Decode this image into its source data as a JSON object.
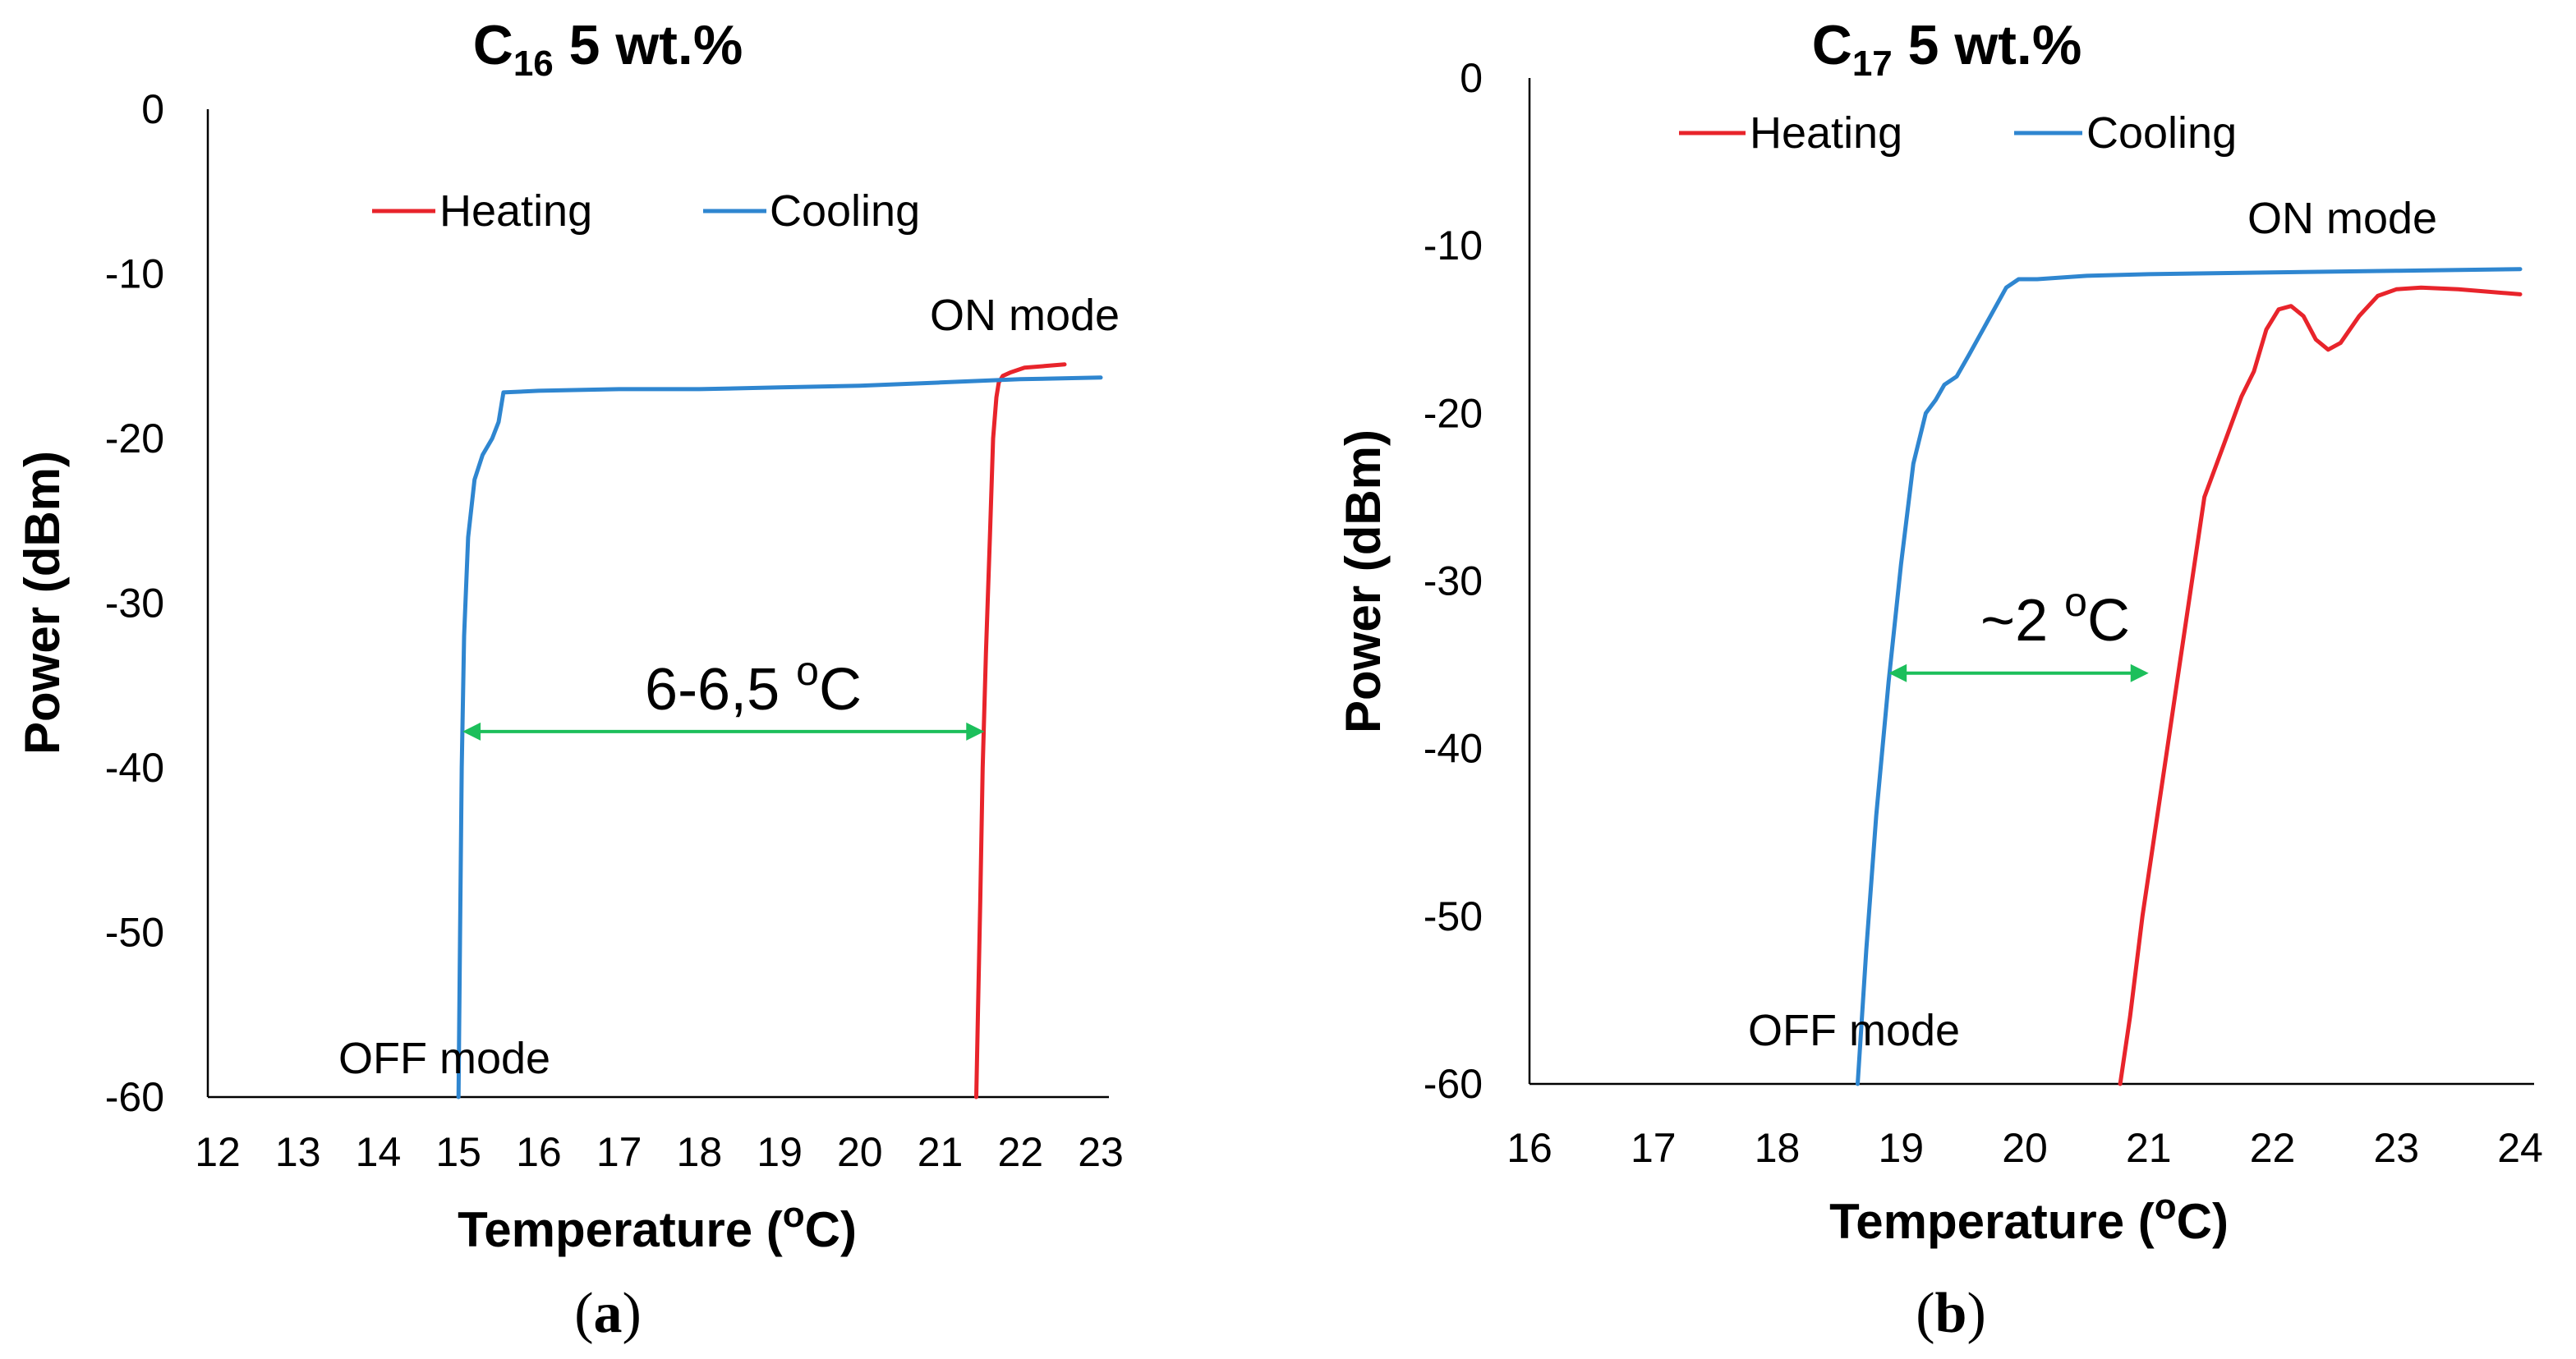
{
  "colors": {
    "heating": "#e8242b",
    "cooling": "#2f86d0",
    "arrow": "#1cbf5b"
  },
  "chart_data": [
    {
      "type": "line",
      "caption": "a",
      "title": {
        "main": "C",
        "sub": "16",
        "rest": "5 wt.%"
      },
      "xlabel": {
        "text": "Temperature (",
        "sup": "o",
        "after": "C)"
      },
      "ylabel": "Power (dBm)",
      "xlim": [
        12,
        23
      ],
      "ylim": [
        -60,
        0
      ],
      "xticks": [
        "12",
        "13",
        "14",
        "15",
        "16",
        "17",
        "18",
        "19",
        "20",
        "21",
        "22",
        "23"
      ],
      "yticks": [
        "0",
        "-10",
        "-20",
        "-30",
        "-40",
        "-50",
        "-60"
      ],
      "legend": [
        "Heating",
        "Cooling"
      ],
      "annotations": {
        "on_mode": "ON mode",
        "off_mode": "OFF mode",
        "gap": {
          "text": "6-6,5 ",
          "sup": "o",
          "after": "C"
        }
      },
      "gap_arrow": {
        "x1": 15.05,
        "x2": 21.55,
        "y": -37.8
      },
      "series": [
        {
          "name": "Heating",
          "x": [
            21.45,
            21.47,
            21.5,
            21.53,
            21.57,
            21.62,
            21.66,
            21.7,
            21.73,
            21.78,
            21.87,
            22.05,
            22.3,
            22.55
          ],
          "y": [
            -60,
            -55,
            -48,
            -40,
            -33,
            -26,
            -20,
            -17.5,
            -16.6,
            -16.2,
            -16,
            -15.7,
            -15.6,
            -15.5
          ]
        },
        {
          "name": "Cooling",
          "x": [
            15.0,
            15.02,
            15.04,
            15.07,
            15.12,
            15.2,
            15.3,
            15.42,
            15.5,
            15.56,
            16,
            17,
            18,
            19,
            20,
            21,
            22,
            23
          ],
          "y": [
            -60,
            -50,
            -40,
            -32,
            -26,
            -22.5,
            -21,
            -20,
            -19,
            -17.2,
            -17.1,
            -17,
            -17,
            -16.9,
            -16.8,
            -16.6,
            -16.4,
            -16.3
          ]
        }
      ]
    },
    {
      "type": "line",
      "caption": "b",
      "title": {
        "main": "C",
        "sub": "17",
        "rest": "5 wt.%"
      },
      "xlabel": {
        "text": "Temperature (",
        "sup": "o",
        "after": "C)"
      },
      "ylabel": "Power  (dBm)",
      "xlim": [
        16,
        24
      ],
      "ylim": [
        -60,
        0
      ],
      "xticks": [
        "16",
        "17",
        "18",
        "19",
        "20",
        "21",
        "22",
        "23",
        "24"
      ],
      "yticks": [
        "0",
        "-10",
        "-20",
        "-30",
        "-40",
        "-50",
        "-60"
      ],
      "legend": [
        "Heating",
        "Cooling"
      ],
      "annotations": {
        "on_mode": "ON mode",
        "off_mode": "OFF mode",
        "gap": {
          "text": "~2 ",
          "sup": "o",
          "after": "C"
        }
      },
      "gap_arrow": {
        "x1": 18.9,
        "x2": 21.0,
        "y": -35.5
      },
      "series": [
        {
          "name": "Heating",
          "x": [
            20.77,
            20.85,
            20.95,
            21.05,
            21.15,
            21.25,
            21.35,
            21.45,
            21.6,
            21.75,
            21.85,
            21.95,
            22.05,
            22.15,
            22.25,
            22.35,
            22.45,
            22.55,
            22.7,
            22.85,
            23.0,
            23.2,
            23.5,
            24.0
          ],
          "y": [
            -60,
            -56,
            -50,
            -45,
            -40,
            -35,
            -30,
            -25,
            -22,
            -19,
            -17.5,
            -15,
            -13.8,
            -13.6,
            -14.2,
            -15.6,
            -16.2,
            -15.8,
            -14.2,
            -13,
            -12.6,
            -12.5,
            -12.6,
            -12.9
          ]
        },
        {
          "name": "Cooling",
          "x": [
            18.65,
            18.72,
            18.8,
            18.9,
            19.0,
            19.1,
            19.2,
            19.28,
            19.35,
            19.45,
            19.55,
            19.7,
            19.85,
            19.95,
            20.1,
            20.5,
            21,
            22,
            23,
            24
          ],
          "y": [
            -60,
            -52,
            -44,
            -36,
            -29,
            -23,
            -20,
            -19.2,
            -18.3,
            -17.8,
            -16.5,
            -14.5,
            -12.5,
            -12.0,
            -12.0,
            -11.8,
            -11.7,
            -11.6,
            -11.5,
            -11.4
          ]
        }
      ]
    }
  ]
}
